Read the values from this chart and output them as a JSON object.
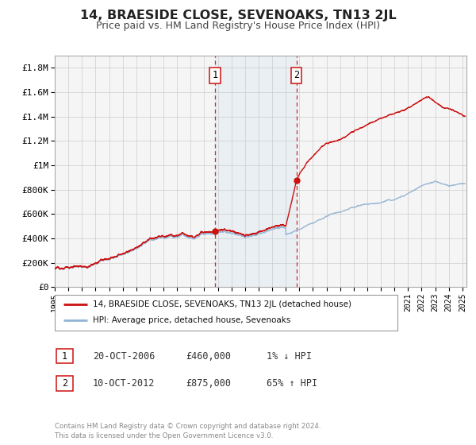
{
  "title": "14, BRAESIDE CLOSE, SEVENOAKS, TN13 2JL",
  "subtitle": "Price paid vs. HM Land Registry's House Price Index (HPI)",
  "title_fontsize": 11.5,
  "subtitle_fontsize": 9,
  "hpi_color": "#92b4d4",
  "price_color": "#cc1111",
  "background_color": "#ffffff",
  "grid_color": "#cccccc",
  "plot_bg_color": "#f5f5f5",
  "ylim": [
    0,
    1900000
  ],
  "xlim_start": 1995.0,
  "xlim_end": 2025.3,
  "ylabel_ticks": [
    0,
    200000,
    400000,
    600000,
    800000,
    1000000,
    1200000,
    1400000,
    1600000,
    1800000
  ],
  "ylabel_labels": [
    "£0",
    "£200K",
    "£400K",
    "£600K",
    "£800K",
    "£1M",
    "£1.2M",
    "£1.4M",
    "£1.6M",
    "£1.8M"
  ],
  "xticks": [
    1995,
    1996,
    1997,
    1998,
    1999,
    2000,
    2001,
    2002,
    2003,
    2004,
    2005,
    2006,
    2007,
    2008,
    2009,
    2010,
    2011,
    2012,
    2013,
    2014,
    2015,
    2016,
    2017,
    2018,
    2019,
    2020,
    2021,
    2022,
    2023,
    2024,
    2025
  ],
  "sale1_x": 2006.8,
  "sale1_y": 460000,
  "sale1_label": "1",
  "sale1_date": "20-OCT-2006",
  "sale1_price": "£460,000",
  "sale1_hpi": "1% ↓ HPI",
  "sale2_x": 2012.78,
  "sale2_y": 875000,
  "sale2_label": "2",
  "sale2_date": "10-OCT-2012",
  "sale2_price": "£875,000",
  "sale2_hpi": "65% ↑ HPI",
  "shade_start": 2006.8,
  "shade_end": 2012.78,
  "legend_line1": "14, BRAESIDE CLOSE, SEVENOAKS, TN13 2JL (detached house)",
  "legend_line2": "HPI: Average price, detached house, Sevenoaks",
  "footnote": "Contains HM Land Registry data © Crown copyright and database right 2024.\nThis data is licensed under the Open Government Licence v3.0."
}
